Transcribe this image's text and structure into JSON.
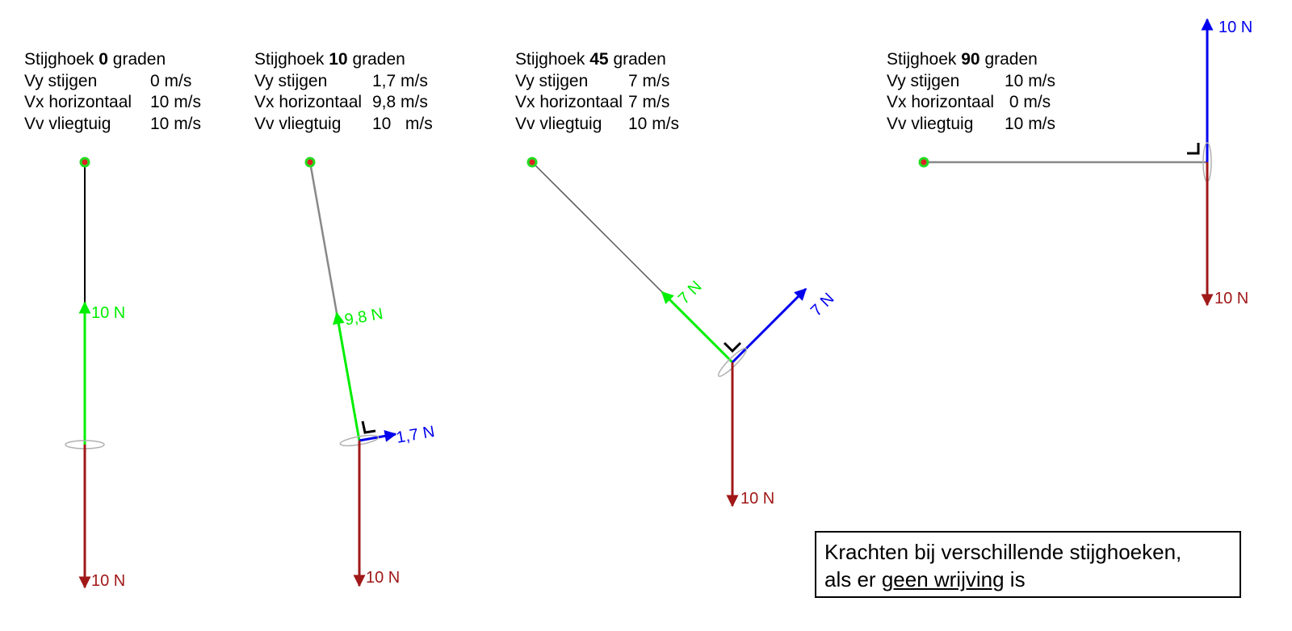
{
  "panels": [
    {
      "title_prefix": "Stijghoek",
      "angle": "0",
      "title_suffix": "graden",
      "rows": [
        {
          "label": "Vy stijgen",
          "value": "0 m/s"
        },
        {
          "label": "Vx horizontaal",
          "value": "10 m/s"
        },
        {
          "label": "Vv vliegtuig",
          "value": "10 m/s"
        }
      ],
      "forces": {
        "thrust": "10 N",
        "gravity": "10 N"
      }
    },
    {
      "title_prefix": "Stijghoek",
      "angle": "10",
      "title_suffix": "graden",
      "rows": [
        {
          "label": "Vy stijgen",
          "value": "1,7 m/s"
        },
        {
          "label": "Vx horizontaal",
          "value": "9,8 m/s"
        },
        {
          "label": "Vv vliegtuig",
          "value": "10   m/s"
        }
      ],
      "forces": {
        "thrust": "9,8 N",
        "lift": "1,7 N",
        "gravity": "10 N"
      }
    },
    {
      "title_prefix": "Stijghoek",
      "angle": "45",
      "title_suffix": "graden",
      "rows": [
        {
          "label": "Vy stijgen",
          "value": "7 m/s"
        },
        {
          "label": "Vx horizontaal",
          "value": "7 m/s"
        },
        {
          "label": "Vv vliegtuig",
          "value": "10 m/s"
        }
      ],
      "forces": {
        "thrust": "7 N",
        "lift": "7 N",
        "gravity": "10 N"
      }
    },
    {
      "title_prefix": "Stijghoek",
      "angle": "90",
      "title_suffix": "graden",
      "rows": [
        {
          "label": "Vy stijgen",
          "value": "10 m/s"
        },
        {
          "label": "Vx horizontaal",
          "value": " 0 m/s"
        },
        {
          "label": "Vv vliegtuig",
          "value": "10 m/s"
        }
      ],
      "forces": {
        "lift": "10 N",
        "gravity": "10 N"
      }
    }
  ],
  "caption": {
    "line1": "Krachten bij verschillende stijghoeken,",
    "line2_prefix": "als er",
    "line2_underlined": "geen wrijving",
    "line2_suffix": "is"
  },
  "colors": {
    "thrust": "#00ee00",
    "lift": "#0000ee",
    "gravity": "#a01818",
    "string": "#808080",
    "string_dark": "#000000",
    "anchor_ring": "#22dd22",
    "anchor_dot": "#dd2222"
  }
}
